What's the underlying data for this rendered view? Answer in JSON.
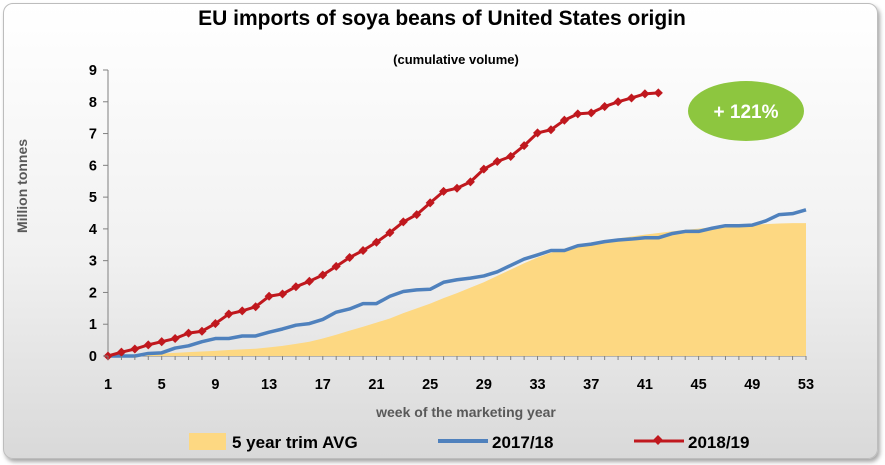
{
  "chart_data": {
    "type": "line",
    "title": "EU imports of soya beans of United States origin",
    "subtitle": "(cumulative volume)",
    "xlabel": "week of the marketing year",
    "ylabel": "Million tonnes",
    "xlim": [
      1,
      53
    ],
    "ylim": [
      0,
      9
    ],
    "x_ticks": [
      1,
      5,
      9,
      13,
      17,
      21,
      25,
      29,
      33,
      37,
      41,
      45,
      49,
      53
    ],
    "y_ticks": [
      0,
      1,
      2,
      3,
      4,
      5,
      6,
      7,
      8,
      9
    ],
    "annotation": "+ 121%",
    "colors": {
      "area": "#fdd882",
      "series_2017": "#4f81bd",
      "series_2018": "#c0181e",
      "badge": "#8dc63f"
    },
    "series": [
      {
        "name": "5 year trim AVG",
        "style": "area",
        "x": [
          1,
          2,
          3,
          4,
          5,
          6,
          7,
          8,
          9,
          10,
          11,
          12,
          13,
          14,
          15,
          16,
          17,
          18,
          19,
          20,
          21,
          22,
          23,
          24,
          25,
          26,
          27,
          28,
          29,
          30,
          31,
          32,
          33,
          34,
          35,
          36,
          37,
          38,
          39,
          40,
          41,
          42,
          43,
          44,
          45,
          46,
          47,
          48,
          49,
          50,
          51,
          52,
          53
        ],
        "values": [
          0,
          0.02,
          0.04,
          0.06,
          0.08,
          0.1,
          0.12,
          0.14,
          0.16,
          0.19,
          0.21,
          0.23,
          0.27,
          0.32,
          0.38,
          0.45,
          0.55,
          0.67,
          0.8,
          0.92,
          1.05,
          1.18,
          1.35,
          1.5,
          1.65,
          1.82,
          1.98,
          2.15,
          2.32,
          2.52,
          2.72,
          2.92,
          3.1,
          3.25,
          3.38,
          3.48,
          3.56,
          3.64,
          3.7,
          3.76,
          3.82,
          3.87,
          3.92,
          3.97,
          4.01,
          4.05,
          4.08,
          4.1,
          4.13,
          4.15,
          4.17,
          4.18,
          4.18
        ]
      },
      {
        "name": "2017/18",
        "style": "line",
        "x": [
          1,
          2,
          3,
          4,
          5,
          6,
          7,
          8,
          9,
          10,
          11,
          12,
          13,
          14,
          15,
          16,
          17,
          18,
          19,
          20,
          21,
          22,
          23,
          24,
          25,
          26,
          27,
          28,
          29,
          30,
          31,
          32,
          33,
          34,
          35,
          36,
          37,
          38,
          39,
          40,
          41,
          42,
          43,
          44,
          45,
          46,
          47,
          48,
          49,
          50,
          51,
          52,
          53
        ],
        "values": [
          0,
          0,
          0,
          0.08,
          0.1,
          0.25,
          0.32,
          0.45,
          0.55,
          0.55,
          0.63,
          0.63,
          0.75,
          0.85,
          0.97,
          1.02,
          1.15,
          1.38,
          1.48,
          1.65,
          1.65,
          1.88,
          2.03,
          2.08,
          2.1,
          2.32,
          2.4,
          2.45,
          2.52,
          2.65,
          2.85,
          3.05,
          3.18,
          3.32,
          3.32,
          3.47,
          3.52,
          3.6,
          3.65,
          3.68,
          3.72,
          3.72,
          3.85,
          3.92,
          3.92,
          4.02,
          4.1,
          4.1,
          4.12,
          4.25,
          4.45,
          4.48,
          4.6
        ]
      },
      {
        "name": "2018/19",
        "style": "line-markers",
        "x": [
          1,
          2,
          3,
          4,
          5,
          6,
          7,
          8,
          9,
          10,
          11,
          12,
          13,
          14,
          15,
          16,
          17,
          18,
          19,
          20,
          21,
          22,
          23,
          24,
          25,
          26,
          27,
          28,
          29,
          30,
          31,
          32,
          33,
          34,
          35,
          36,
          37,
          38,
          39,
          40,
          41,
          42
        ],
        "values": [
          0,
          0.12,
          0.22,
          0.35,
          0.45,
          0.55,
          0.72,
          0.78,
          1.02,
          1.32,
          1.42,
          1.55,
          1.88,
          1.95,
          2.18,
          2.35,
          2.55,
          2.82,
          3.1,
          3.32,
          3.58,
          3.88,
          4.22,
          4.45,
          4.82,
          5.18,
          5.28,
          5.48,
          5.88,
          6.12,
          6.28,
          6.62,
          7.02,
          7.12,
          7.42,
          7.62,
          7.65,
          7.85,
          8.0,
          8.12,
          8.25,
          8.28
        ]
      }
    ]
  }
}
